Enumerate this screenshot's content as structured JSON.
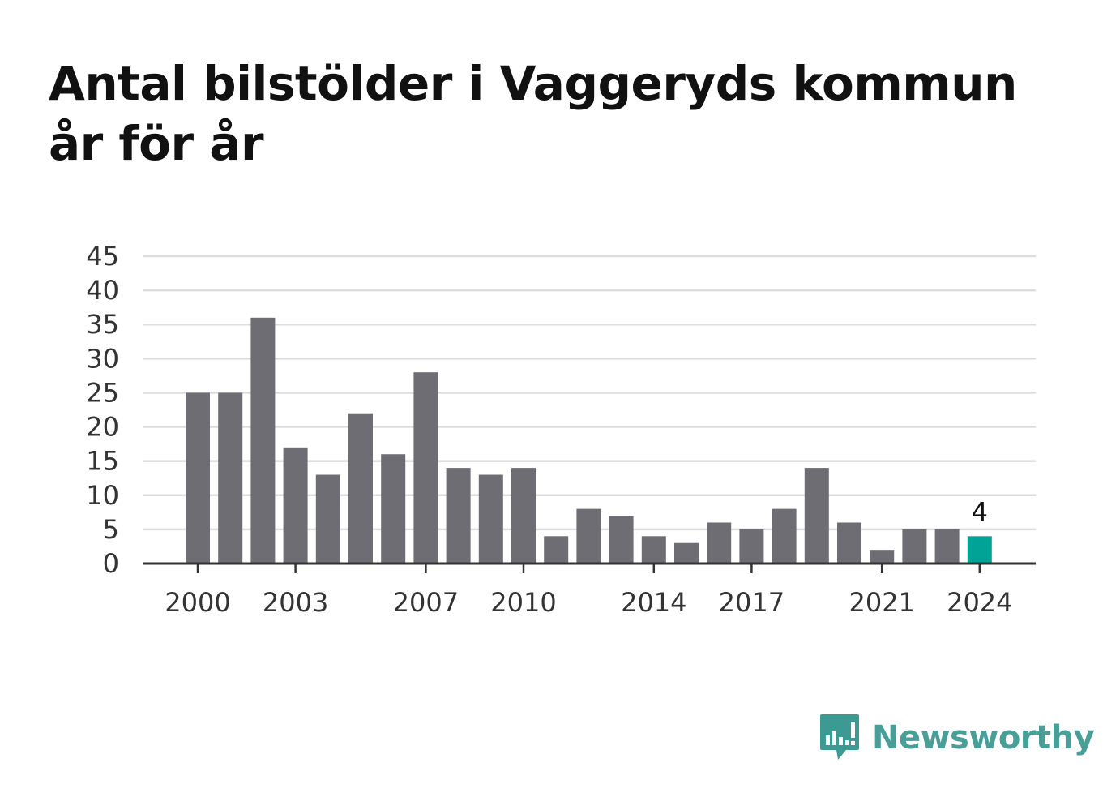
{
  "title": "Antal bilstölder i Vaggeryds kommun år för år",
  "brand": {
    "name": "Newsworthy",
    "icon": "newsworthy-logo-icon",
    "color": "#3d9a93"
  },
  "chart_data": {
    "type": "bar",
    "title": "Antal bilstölder i Vaggeryds kommun år för år",
    "xlabel": "",
    "ylabel": "",
    "categories": [
      2000,
      2001,
      2002,
      2003,
      2004,
      2005,
      2006,
      2007,
      2008,
      2009,
      2010,
      2011,
      2012,
      2013,
      2014,
      2015,
      2016,
      2017,
      2018,
      2019,
      2020,
      2021,
      2022,
      2023,
      2024
    ],
    "values": [
      25,
      25,
      36,
      17,
      13,
      22,
      16,
      28,
      14,
      13,
      14,
      4,
      8,
      7,
      4,
      3,
      6,
      5,
      8,
      14,
      6,
      2,
      5,
      5,
      4
    ],
    "ylim": [
      0,
      45
    ],
    "yticks": [
      0,
      5,
      10,
      15,
      20,
      25,
      30,
      35,
      40,
      45
    ],
    "xticks": [
      2000,
      2003,
      2007,
      2010,
      2014,
      2017,
      2021,
      2024
    ],
    "grid": true,
    "highlight": {
      "category": 2024,
      "value_label": "4"
    },
    "colors": {
      "bar": "#6e6d73",
      "highlight": "#00a396",
      "grid": "#dddddd",
      "axis": "#333333"
    }
  }
}
